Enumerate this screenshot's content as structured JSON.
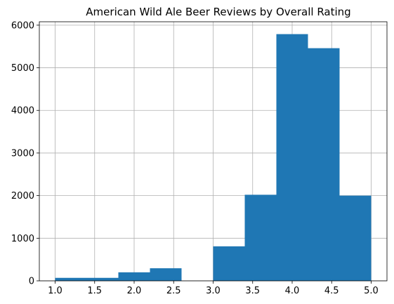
{
  "chart_data": {
    "type": "bar",
    "title": "American Wild Ale Beer Reviews by Overall Rating",
    "xlabel": "",
    "ylabel": "",
    "xlim": [
      0.8,
      5.2
    ],
    "ylim": [
      0,
      6080
    ],
    "grid": true,
    "bar_color": "#1f77b4",
    "bins": [
      {
        "x0": 1.0,
        "x1": 1.4,
        "value": 70
      },
      {
        "x0": 1.4,
        "x1": 1.8,
        "value": 70
      },
      {
        "x0": 1.8,
        "x1": 2.2,
        "value": 200
      },
      {
        "x0": 2.2,
        "x1": 2.6,
        "value": 295
      },
      {
        "x0": 2.6,
        "x1": 3.0,
        "value": 0
      },
      {
        "x0": 3.0,
        "x1": 3.4,
        "value": 810
      },
      {
        "x0": 3.4,
        "x1": 3.8,
        "value": 2020
      },
      {
        "x0": 3.8,
        "x1": 4.2,
        "value": 5790
      },
      {
        "x0": 4.2,
        "x1": 4.6,
        "value": 5460
      },
      {
        "x0": 4.6,
        "x1": 5.0,
        "value": 2000
      }
    ],
    "x_ticks": [
      1.0,
      1.5,
      2.0,
      2.5,
      3.0,
      3.5,
      4.0,
      4.5,
      5.0
    ],
    "x_tick_labels": [
      "1.0",
      "1.5",
      "2.0",
      "2.5",
      "3.0",
      "3.5",
      "4.0",
      "4.5",
      "5.0"
    ],
    "y_ticks": [
      0,
      1000,
      2000,
      3000,
      4000,
      5000,
      6000
    ],
    "y_tick_labels": [
      "0",
      "1000",
      "2000",
      "3000",
      "4000",
      "5000",
      "6000"
    ]
  }
}
